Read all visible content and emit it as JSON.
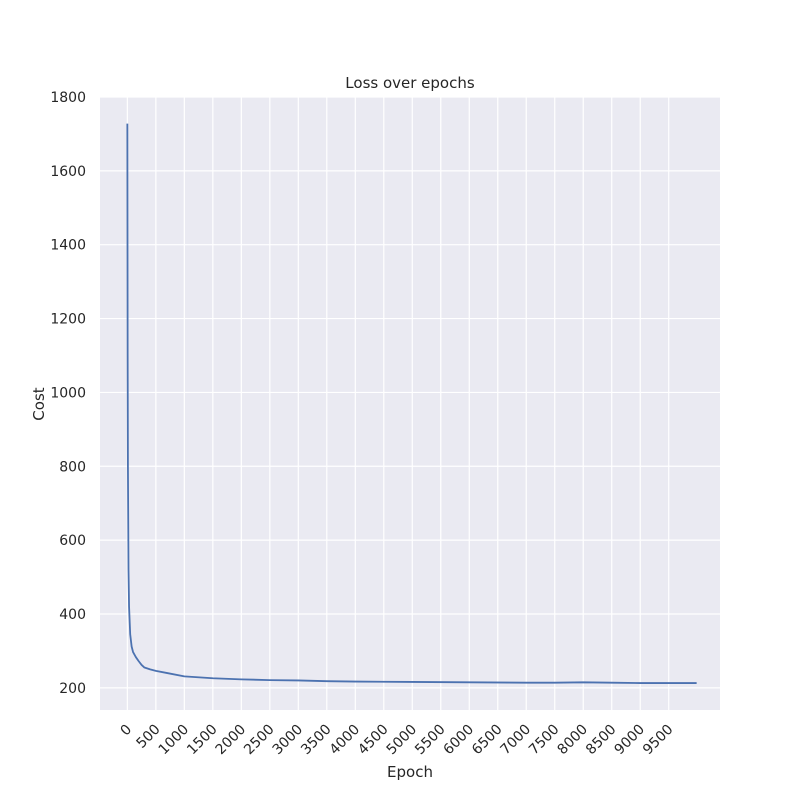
{
  "chart_data": {
    "type": "line",
    "title": "Loss over epochs",
    "xlabel": "Epoch",
    "ylabel": "Cost",
    "xlim": [
      -480,
      10400
    ],
    "ylim": [
      140,
      1800
    ],
    "x_ticks": [
      0,
      500,
      1000,
      1500,
      2000,
      2500,
      3000,
      3500,
      4000,
      4500,
      5000,
      5500,
      6000,
      6500,
      7000,
      7500,
      8000,
      8500,
      9000,
      9500
    ],
    "y_ticks": [
      200,
      400,
      600,
      800,
      1000,
      1200,
      1400,
      1600,
      1800
    ],
    "grid": true,
    "colors": {
      "background": "#eaeaf2",
      "grid": "#ffffff",
      "line": "#4c72b0"
    },
    "series": [
      {
        "x": [
          0,
          5,
          10,
          20,
          30,
          50,
          75,
          100,
          150,
          200,
          250,
          300,
          400,
          500,
          700,
          1000,
          1500,
          2000,
          2500,
          3000,
          3500,
          4000,
          5000,
          6000,
          7000,
          7500,
          8000,
          8500,
          9000,
          9500,
          9990
        ],
        "y": [
          1728,
          1100,
          800,
          520,
          420,
          345,
          312,
          297,
          283,
          272,
          262,
          255,
          250,
          246,
          240,
          231,
          226,
          223,
          221,
          220,
          218,
          217,
          216,
          215,
          214,
          214,
          215,
          214,
          213,
          213,
          213
        ]
      }
    ]
  }
}
